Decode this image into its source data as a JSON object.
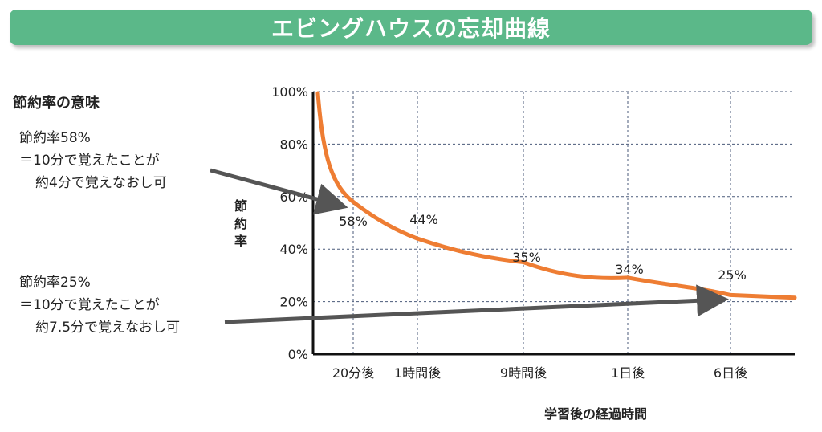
{
  "title": "エビングハウスの忘却曲線",
  "side_heading": "節約率の意味",
  "notes": [
    {
      "line1": "節約率58%",
      "line2": "＝10分で覚えたことが",
      "line3": "約4分で覚えなおし可"
    },
    {
      "line1": "節約率25%",
      "line2": "＝10分で覚えたことが",
      "line3": "約7.5分で覚えなおし可"
    }
  ],
  "chart_data": {
    "type": "line",
    "title": "エビングハウスの忘却曲線",
    "xlabel": "学習後の経過時間",
    "ylabel": "節約率",
    "categories": [
      "20分後",
      "1時間後",
      "9時間後",
      "1日後",
      "6日後"
    ],
    "y_ticks": [
      "0%",
      "20%",
      "40%",
      "60%",
      "80%",
      "100%"
    ],
    "ylim": [
      0,
      100
    ],
    "grid": true,
    "series": [
      {
        "values": [
          58,
          44,
          35,
          34,
          25
        ],
        "labels": [
          "58%",
          "44%",
          "35%",
          "34%",
          "25%"
        ]
      }
    ],
    "line_color": "#ee7d33"
  }
}
